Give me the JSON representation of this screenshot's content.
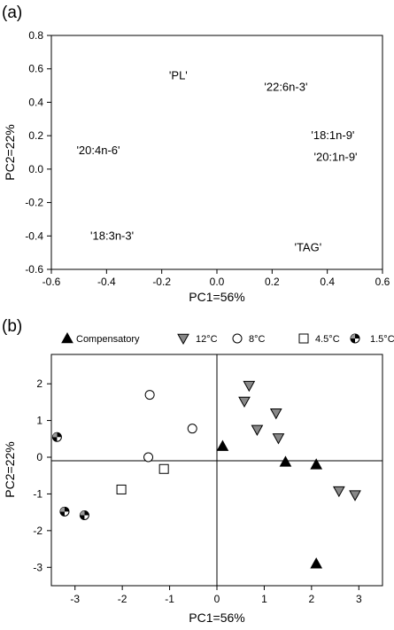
{
  "chart_data": [
    {
      "type": "scatter",
      "panel_label": "(a)",
      "xlabel": "PC1=56%",
      "ylabel": "PC2=22%",
      "xlim": [
        -0.6,
        0.6
      ],
      "ylim": [
        -0.6,
        0.8
      ],
      "xticks": [
        "-0.6",
        "-0.4",
        "-0.2",
        "0.0",
        "0.2",
        "0.4",
        "0.6"
      ],
      "yticks": [
        "-0.6",
        "-0.4",
        "-0.2",
        "0.0",
        "0.2",
        "0.4",
        "0.6",
        "0.8"
      ],
      "loadings": [
        {
          "label": "'PL'",
          "x": -0.14,
          "y": 0.56
        },
        {
          "label": "'22:6n-3'",
          "x": 0.25,
          "y": 0.49
        },
        {
          "label": "'18:1n-9'",
          "x": 0.42,
          "y": 0.2
        },
        {
          "label": "'20:1n-9'",
          "x": 0.43,
          "y": 0.07
        },
        {
          "label": "'20:4n-6'",
          "x": -0.43,
          "y": 0.11
        },
        {
          "label": "'18:3n-3'",
          "x": -0.38,
          "y": -0.4
        },
        {
          "label": "'TAG'",
          "x": 0.33,
          "y": -0.47
        }
      ]
    },
    {
      "type": "scatter",
      "panel_label": "(b)",
      "xlabel": "PC1=56%",
      "ylabel": "PC2=22%",
      "xlim": [
        -3.5,
        3.5
      ],
      "ylim": [
        -3.5,
        2.8
      ],
      "xticks": [
        "-3",
        "-2",
        "-1",
        "0",
        "1",
        "2",
        "3"
      ],
      "yticks": [
        "-3",
        "-2",
        "-1",
        "0",
        "1",
        "2"
      ],
      "legend_position": "top",
      "series": [
        {
          "name": "Compensatory",
          "marker": "triangle-up",
          "color": "#000000",
          "points": [
            [
              0.12,
              0.3
            ],
            [
              1.45,
              -0.13
            ],
            [
              2.1,
              -0.2
            ],
            [
              2.1,
              -2.9
            ]
          ]
        },
        {
          "name": "12°C",
          "marker": "triangle-down",
          "color": "#888888",
          "points": [
            [
              0.68,
              1.95
            ],
            [
              0.58,
              1.52
            ],
            [
              1.25,
              1.2
            ],
            [
              0.85,
              0.75
            ],
            [
              1.3,
              0.52
            ],
            [
              2.58,
              -0.92
            ],
            [
              2.92,
              -1.03
            ]
          ]
        },
        {
          "name": "8°C",
          "marker": "circle-open",
          "color": "#ffffff",
          "points": [
            [
              -1.42,
              1.7
            ],
            [
              -0.52,
              0.78
            ],
            [
              -1.45,
              0.0
            ]
          ]
        },
        {
          "name": "4.5°C",
          "marker": "square-open",
          "color": "#ffffff",
          "points": [
            [
              -2.02,
              -0.88
            ],
            [
              -1.12,
              -0.32
            ]
          ]
        },
        {
          "name": "1.5°C",
          "marker": "circle-quartered",
          "color": "#000000",
          "points": [
            [
              -3.38,
              0.55
            ],
            [
              -3.22,
              -1.48
            ],
            [
              -2.8,
              -1.58
            ]
          ]
        }
      ]
    }
  ]
}
